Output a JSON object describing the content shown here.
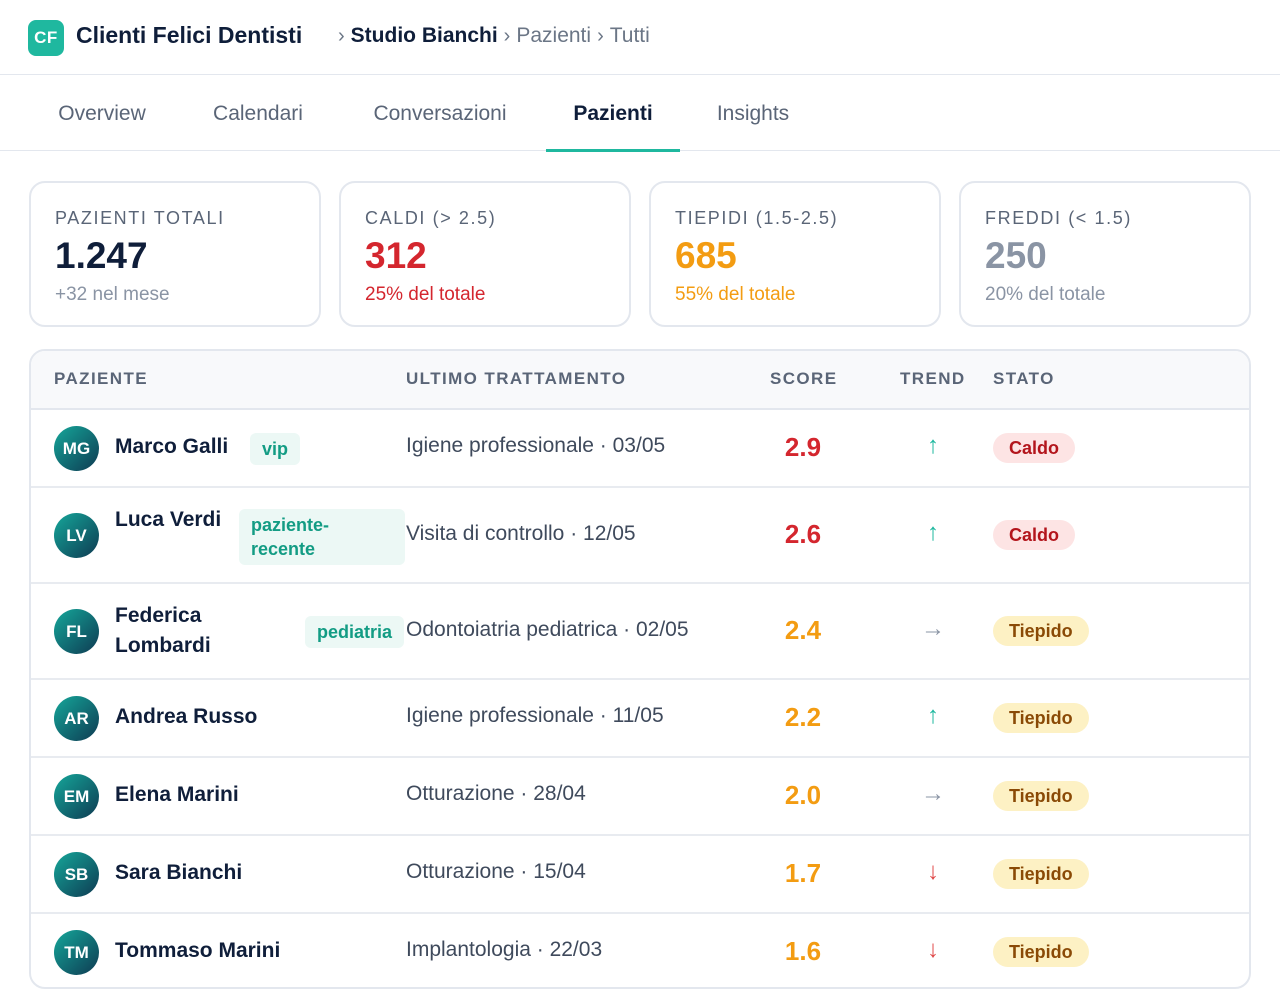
{
  "header": {
    "logo_text": "CF",
    "app_title": "Clienti Felici Dentisti",
    "breadcrumb": [
      "Studio Bianchi",
      "Pazienti",
      "Tutti"
    ],
    "breadcrumb_sep": "›"
  },
  "tabs": [
    {
      "label": "Overview",
      "active": false
    },
    {
      "label": "Calendari",
      "active": false
    },
    {
      "label": "Conversazioni",
      "active": false
    },
    {
      "label": "Pazienti",
      "active": true
    },
    {
      "label": "Insights",
      "active": false
    }
  ],
  "stats": [
    {
      "label": "PAZIENTI TOTALI",
      "value": "1.247",
      "sub": "+32 nel mese",
      "value_color": "#0f1e3a",
      "sub_color": "#8a94a4"
    },
    {
      "label": "CALDI (> 2.5)",
      "value": "312",
      "sub": "25% del totale",
      "value_color": "#d4262e",
      "sub_color": "#d4262e"
    },
    {
      "label": "TIEPIDI (1.5-2.5)",
      "value": "685",
      "sub": "55% del totale",
      "value_color": "#f39c12",
      "sub_color": "#f39c12"
    },
    {
      "label": "FREDDI (< 1.5)",
      "value": "250",
      "sub": "20% del totale",
      "value_color": "#8a94a4",
      "sub_color": "#8a94a4"
    }
  ],
  "table": {
    "columns": {
      "patient": "PAZIENTE",
      "treatment": "ULTIMO TRATTAMENTO",
      "score": "SCORE",
      "trend": "TREND",
      "status": "STATO"
    },
    "rows": [
      {
        "initials": "MG",
        "name": "Marco Galli",
        "tag": "vip",
        "treatment": "Igiene professionale · 03/05",
        "score": "2.9",
        "trend": "↑",
        "trend_kind": "up",
        "status": "Caldo",
        "status_kind": "hot"
      },
      {
        "initials": "LV",
        "name": "Luca Verdi",
        "tag": "paziente-recente",
        "treatment": "Visita di controllo · 12/05",
        "score": "2.6",
        "trend": "↑",
        "trend_kind": "up",
        "status": "Caldo",
        "status_kind": "hot"
      },
      {
        "initials": "FL",
        "name": "Federica Lombardi",
        "tag": "pediatria",
        "treatment": "Odontoiatria pediatrica · 02/05",
        "score": "2.4",
        "trend": "→",
        "trend_kind": "flat",
        "status": "Tiepido",
        "status_kind": "warm"
      },
      {
        "initials": "AR",
        "name": "Andrea Russo",
        "tag": "",
        "treatment": "Igiene professionale · 11/05",
        "score": "2.2",
        "trend": "↑",
        "trend_kind": "up",
        "status": "Tiepido",
        "status_kind": "warm"
      },
      {
        "initials": "EM",
        "name": "Elena Marini",
        "tag": "",
        "treatment": "Otturazione · 28/04",
        "score": "2.0",
        "trend": "→",
        "trend_kind": "flat",
        "status": "Tiepido",
        "status_kind": "warm"
      },
      {
        "initials": "SB",
        "name": "Sara Bianchi",
        "tag": "",
        "treatment": "Otturazione · 15/04",
        "score": "1.7",
        "trend": "↓",
        "trend_kind": "down",
        "status": "Tiepido",
        "status_kind": "warm"
      },
      {
        "initials": "TM",
        "name": "Tommaso Marini",
        "tag": "",
        "treatment": "Implantologia · 22/03",
        "score": "1.6",
        "trend": "↓",
        "trend_kind": "down",
        "status": "Tiepido",
        "status_kind": "warm"
      }
    ]
  },
  "colors": {
    "accent": "#1fb89f",
    "hot": "#d4262e",
    "warm": "#f39c12",
    "cold": "#8a94a4",
    "trend_up": "#1fb89f",
    "trend_down": "#e04a4a",
    "trend_flat": "#8a94a4",
    "hot_badge_bg": "#fde4e4",
    "hot_badge_text": "#b3151c",
    "warm_badge_bg": "#fdf1c4",
    "warm_badge_text": "#8a4a06"
  }
}
